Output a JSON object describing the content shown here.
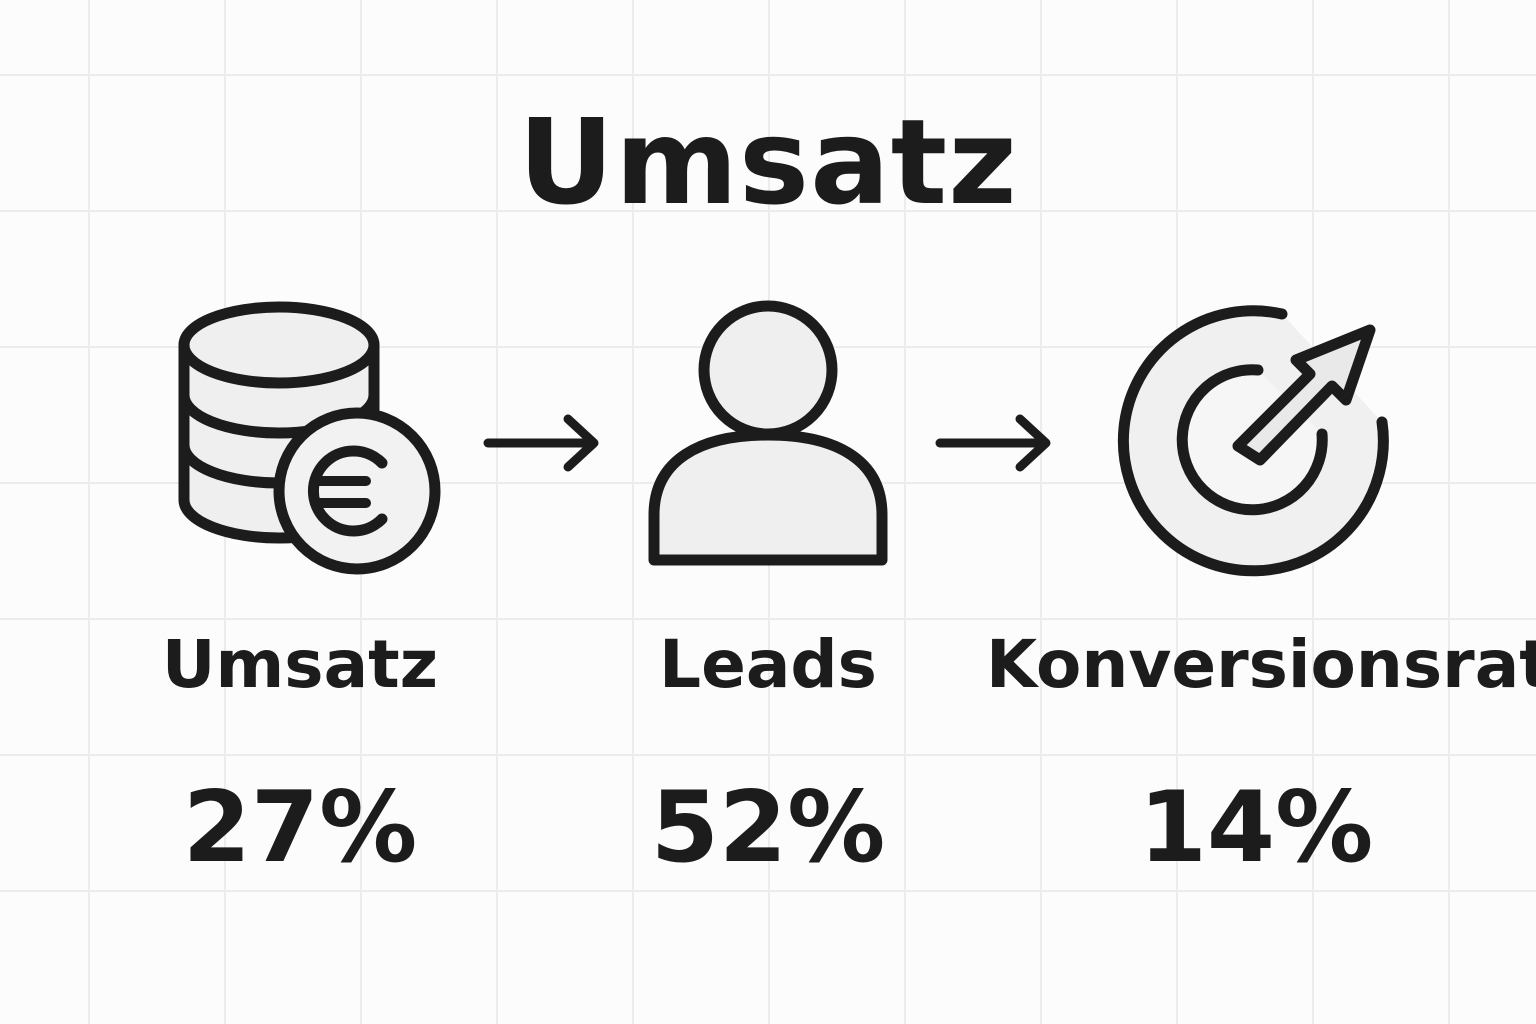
{
  "title": "Umsatz",
  "steps": [
    {
      "icon": "coins-euro-icon",
      "label": "Umsatz",
      "value": "27%"
    },
    {
      "icon": "user-icon",
      "label": "Leads",
      "value": "52%"
    },
    {
      "icon": "target-arrow-icon",
      "label": "Konversionsrate",
      "value": "14%"
    }
  ],
  "colors": {
    "stroke": "#1c1c1c",
    "icon_fill": "#eeeeee",
    "grid": "#ececec",
    "background": "#fcfcfc"
  }
}
